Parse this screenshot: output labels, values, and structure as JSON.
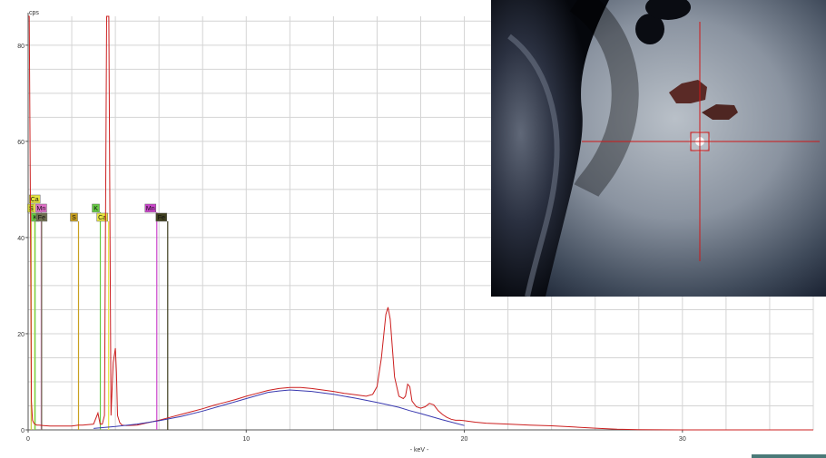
{
  "chart_data": {
    "type": "line",
    "ylabel": "cps",
    "xlabel": "- keV -",
    "xlim": [
      0,
      36
    ],
    "ylim": [
      0,
      86
    ],
    "x_ticks": [
      0,
      10,
      20,
      30
    ],
    "x_tick_labels": [
      "0",
      "10",
      "20",
      "30"
    ],
    "y_ticks": [
      0,
      20,
      40,
      60,
      80
    ],
    "y_tick_labels": [
      "0",
      "20",
      "40",
      "60",
      "80"
    ],
    "grid": true,
    "colors": {
      "spectrum": "#cc1f1f",
      "background_fit": "#3a3ab0",
      "grid": "#d4d4d4",
      "axis": "#555555"
    },
    "series": [
      {
        "key": "spectrum",
        "x": [
          0.0,
          0.05,
          0.1,
          0.15,
          0.2,
          0.25,
          0.3,
          0.4,
          0.5,
          0.7,
          1.0,
          1.5,
          2.0,
          2.3,
          2.5,
          3.0,
          3.2,
          3.3,
          3.4,
          3.5,
          3.6,
          3.7,
          3.8,
          3.9,
          4.0,
          4.05,
          4.1,
          4.2,
          4.3,
          4.5,
          5.0,
          5.5,
          6.0,
          6.5,
          7.0,
          7.5,
          8.0,
          8.5,
          9.0,
          9.5,
          10.0,
          10.5,
          11.0,
          11.5,
          12.0,
          12.5,
          13.0,
          13.5,
          14.0,
          14.5,
          15.0,
          15.5,
          15.8,
          16.0,
          16.2,
          16.4,
          16.5,
          16.6,
          16.7,
          16.8,
          17.0,
          17.2,
          17.3,
          17.4,
          17.5,
          17.6,
          17.8,
          18.0,
          18.2,
          18.4,
          18.6,
          18.8,
          19.0,
          19.2,
          19.4,
          19.6,
          19.8,
          20.0,
          20.5,
          21.0,
          22.0,
          23.0,
          24.0,
          25.0,
          26.0,
          27.0,
          28.0,
          29.0,
          30.0,
          31.0,
          32.0,
          33.0,
          34.0,
          35.0,
          36.0
        ],
        "y": [
          86,
          86,
          50,
          6,
          2,
          1.5,
          1.2,
          1.0,
          1.0,
          0.9,
          0.8,
          0.8,
          0.8,
          1.0,
          1.0,
          1.2,
          3.5,
          1.2,
          1.2,
          3,
          86,
          86,
          3,
          14,
          17,
          12,
          3,
          1.5,
          1.0,
          0.9,
          1.0,
          1.5,
          2.0,
          2.6,
          3.2,
          3.8,
          4.4,
          5.1,
          5.7,
          6.3,
          7.0,
          7.6,
          8.2,
          8.6,
          8.8,
          8.8,
          8.6,
          8.3,
          8.0,
          7.6,
          7.3,
          7.0,
          7.4,
          9,
          15,
          24,
          25.5,
          23,
          17,
          11,
          7.0,
          6.5,
          7,
          9.5,
          9,
          6,
          4.8,
          4.5,
          4.8,
          5.5,
          5.2,
          4.0,
          3.2,
          2.6,
          2.2,
          2.0,
          2.0,
          1.9,
          1.6,
          1.4,
          1.2,
          1.0,
          0.85,
          0.6,
          0.35,
          0.15,
          0.05,
          0.02,
          0.0,
          0.0,
          0.0,
          0.0,
          0.0,
          0.0,
          0.0
        ]
      },
      {
        "key": "background_fit",
        "x": [
          3.0,
          4.0,
          5.0,
          6.0,
          7.0,
          8.0,
          9.0,
          10.0,
          11.0,
          11.5,
          12.0,
          13.0,
          14.0,
          15.0,
          16.0,
          16.5,
          17.0,
          17.5,
          18.0,
          19.0,
          20.0
        ],
        "y": [
          0.3,
          0.7,
          1.2,
          1.9,
          2.8,
          3.9,
          5.2,
          6.5,
          7.8,
          8.1,
          8.3,
          8.0,
          7.4,
          6.6,
          5.7,
          5.2,
          4.7,
          4.0,
          3.4,
          2.1,
          0.9
        ]
      }
    ],
    "element_lines": [
      {
        "label": "S",
        "x": 0.14,
        "color": "#c8c83c",
        "label_row": 1
      },
      {
        "label": "Ca",
        "x": 0.3,
        "color": "#e6e640",
        "label_row": 0
      },
      {
        "label": "Mn",
        "x": 0.6,
        "color": "#e070c8",
        "label_row": 1
      },
      {
        "label": "K",
        "x": 0.32,
        "color": "#66cc44",
        "label_row": 2
      },
      {
        "label": "Fe",
        "x": 0.62,
        "color": "#707050",
        "label_row": 2
      },
      {
        "label": "S",
        "x": 2.31,
        "color": "#c8a020",
        "label_row": 2
      },
      {
        "label": "K",
        "x": 3.31,
        "color": "#66cc44",
        "label_row": 1
      },
      {
        "label": "Ca",
        "x": 3.69,
        "color": "#e6e640",
        "label_row": 2
      },
      {
        "label": "Mn",
        "x": 5.9,
        "color": "#cc44cc",
        "label_row": 1
      },
      {
        "label": "Fe",
        "x": 6.4,
        "color": "#404020",
        "label_row": 2
      }
    ]
  },
  "camera_view": {
    "crosshair_color": "#d01818"
  }
}
